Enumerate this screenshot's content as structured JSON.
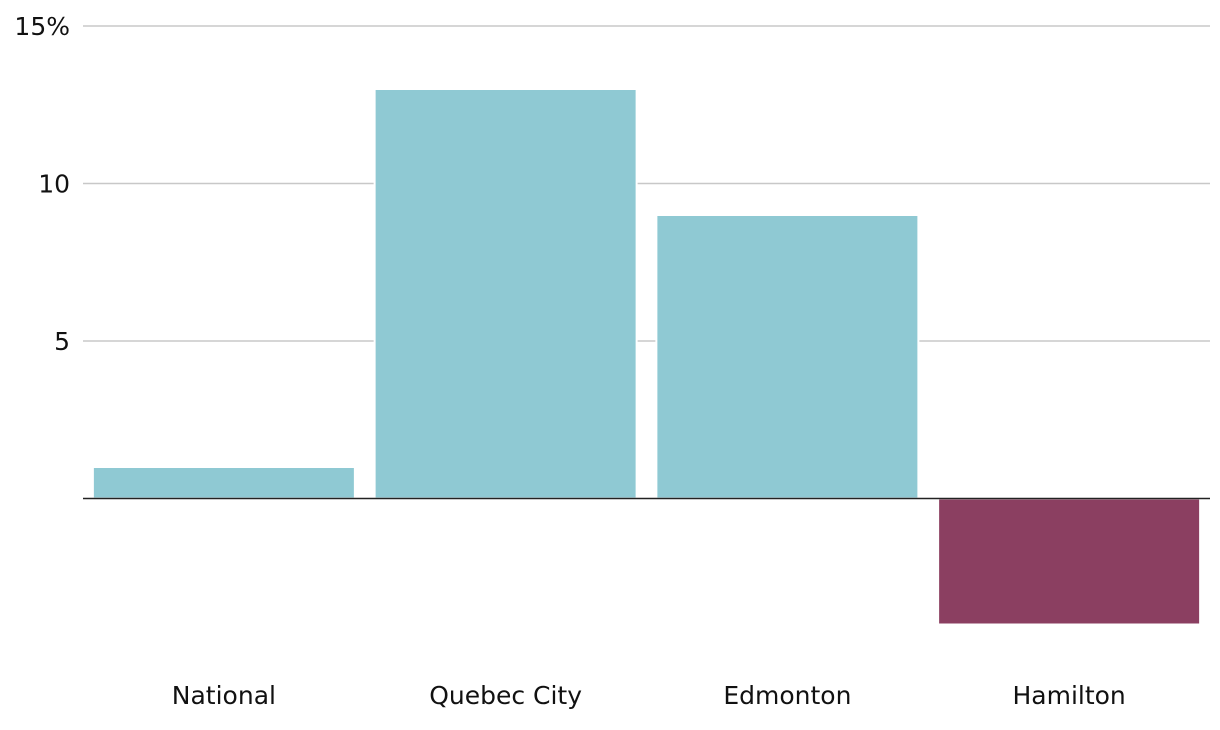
{
  "chart_data": {
    "type": "bar",
    "categories": [
      "National",
      "Quebec City",
      "Edmonton",
      "Hamilton"
    ],
    "values": [
      1,
      13,
      9,
      -4
    ],
    "colors": [
      "#8fc9d3",
      "#8fc9d3",
      "#8fc9d3",
      "#8b3f61"
    ],
    "ylim": [
      -5,
      15
    ],
    "yticks": [
      5,
      10,
      {
        "value": 15,
        "label": "15%"
      }
    ],
    "grid": true
  }
}
